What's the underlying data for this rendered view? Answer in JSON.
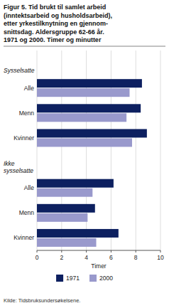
{
  "chart_data": {
    "type": "bar",
    "orientation": "horizontal",
    "title": "Figur 5. Tid brukt til samlet arbeid\n(inntektsarbeid og husholdsarbeid),\netter yrkestilknytning en gjennom-\nsnittsdag. Aldersgruppe 62-66 år.\n1971 og 2000. Timer og minutter",
    "annotations": [
      "Sysselsatte",
      "Ikke\nsysselsatte"
    ],
    "categories": [
      "Alle",
      "Menn",
      "Kvinner",
      "Alle",
      "Menn",
      "Kvinner"
    ],
    "series": [
      {
        "name": "1971",
        "color": "#0d2060",
        "values": [
          8.5,
          8.4,
          8.9,
          6.2,
          4.7,
          6.6
        ]
      },
      {
        "name": "2000",
        "color": "#9999cc",
        "values": [
          7.5,
          7.25,
          7.7,
          4.5,
          4.1,
          4.8
        ]
      }
    ],
    "xlabel": "Timer",
    "xlim": [
      0,
      10
    ],
    "xticks": [
      0,
      2,
      4,
      6,
      8,
      10
    ],
    "grid": true,
    "legend": "bottom",
    "source": "Kilde: Tidsbruksundersøkelsene."
  }
}
